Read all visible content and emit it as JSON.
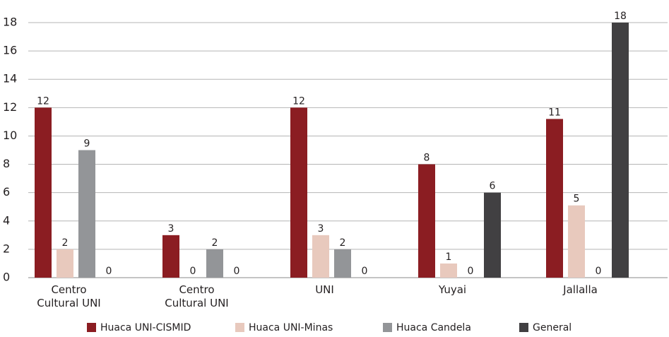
{
  "chart_data": {
    "type": "bar",
    "categories": [
      "Centro Cultural UNI",
      "Centro Cultural UNI",
      "UNI",
      "Yuyai",
      "Jallalla"
    ],
    "series": [
      {
        "name": "Huaca UNI-CISMID",
        "color": "#8b1d22",
        "values": [
          12,
          3,
          12,
          8,
          11.2
        ],
        "value_labels": [
          "12",
          "3",
          "12",
          "8",
          "11"
        ]
      },
      {
        "name": "Huaca UNI-Minas",
        "color": "#e8c9bd",
        "values": [
          2,
          0,
          3,
          1,
          5.1
        ],
        "value_labels": [
          "2",
          "0",
          "3",
          "1",
          "5"
        ]
      },
      {
        "name": "Huaca Candela",
        "color": "#939598",
        "values": [
          9,
          2,
          2,
          0,
          0
        ]
      },
      {
        "name": "General",
        "color": "#414042",
        "values": [
          0,
          0,
          0,
          6,
          18
        ]
      }
    ],
    "ylim": [
      0,
      18
    ],
    "yticks": [
      0,
      2,
      4,
      6,
      8,
      10,
      12,
      14,
      16,
      18
    ],
    "grid": true,
    "legend": "bottom"
  }
}
